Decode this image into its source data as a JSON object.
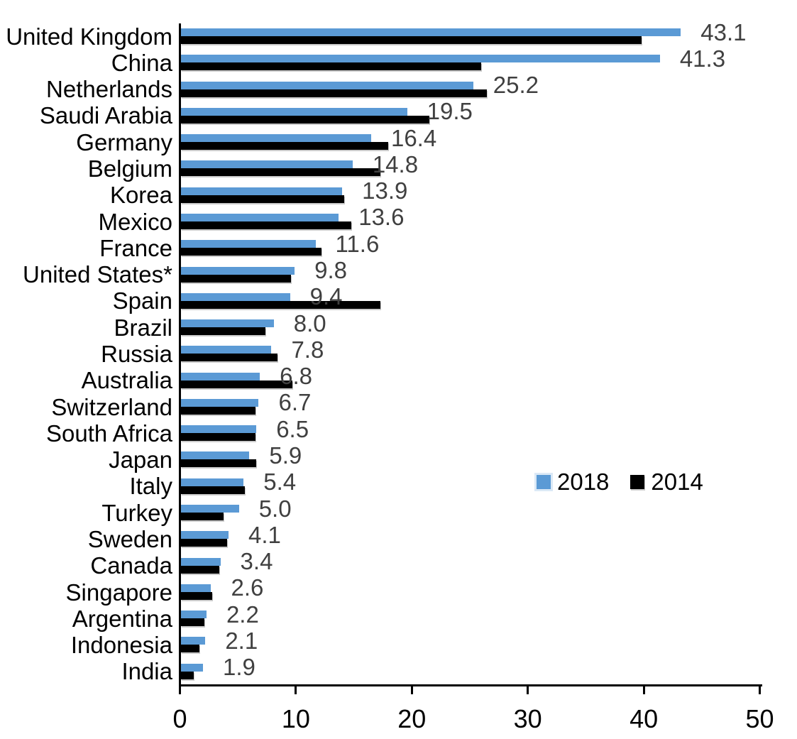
{
  "chart_data": {
    "type": "bar",
    "orientation": "horizontal",
    "title": "",
    "xlabel": "",
    "ylabel": "",
    "xlim": [
      0,
      50
    ],
    "x_ticks": [
      0,
      10,
      20,
      30,
      40,
      50
    ],
    "grid": "off",
    "legend_position": "right-middle",
    "categories": [
      "United Kingdom",
      "China",
      "Netherlands",
      "Saudi Arabia",
      "Germany",
      "Belgium",
      "Korea",
      "Mexico",
      "France",
      "United States*",
      "Spain",
      "Brazil",
      "Russia",
      "Australia",
      "Switzerland",
      "South Africa",
      "Japan",
      "Italy",
      "Turkey",
      "Sweden",
      "Canada",
      "Singapore",
      "Argentina",
      "Indonesia",
      "India"
    ],
    "series": [
      {
        "name": "2018",
        "color": "#5B9AD5",
        "values": [
          43.1,
          41.3,
          25.2,
          19.5,
          16.4,
          14.8,
          13.9,
          13.6,
          11.6,
          9.8,
          9.4,
          8.0,
          7.8,
          6.8,
          6.7,
          6.5,
          5.9,
          5.4,
          5.0,
          4.1,
          3.4,
          2.6,
          2.2,
          2.1,
          1.9
        ]
      },
      {
        "name": "2014",
        "color": "#000000",
        "values": [
          39.7,
          25.9,
          26.4,
          21.4,
          17.9,
          17.2,
          14.1,
          14.7,
          12.1,
          9.5,
          17.2,
          7.3,
          8.3,
          9.6,
          6.4,
          6.4,
          6.5,
          5.5,
          3.7,
          4.0,
          3.3,
          2.7,
          2.0,
          1.6,
          1.1
        ]
      }
    ],
    "data_labels": {
      "attached_to_series": "2018",
      "values": [
        "43.1",
        "41.3",
        "25.2",
        "19.5",
        "16.4",
        "14.8",
        "13.9",
        "13.6",
        "11.6",
        "9.8",
        "9.4",
        "8.0",
        "7.8",
        "6.8",
        "6.7",
        "6.5",
        "5.9",
        "5.4",
        "5.0",
        "4.1",
        "3.4",
        "2.6",
        "2.2",
        "2.1",
        "1.9"
      ],
      "color": "#404040"
    },
    "axis_color": "#000000"
  }
}
